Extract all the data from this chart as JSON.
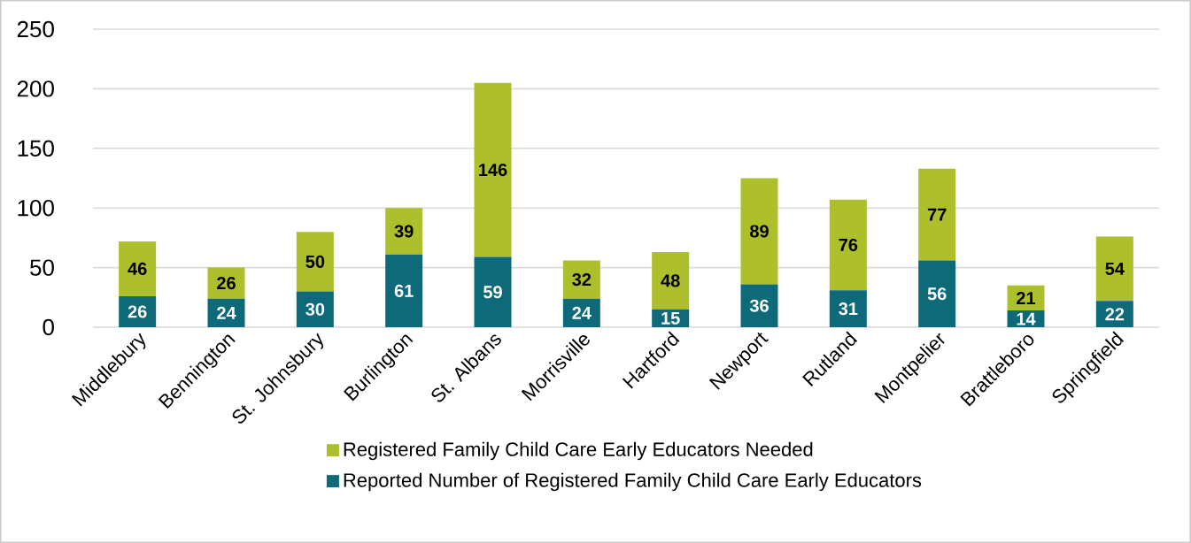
{
  "chart_data": {
    "type": "bar",
    "stacked": true,
    "categories": [
      "Middlebury",
      "Bennington",
      "St. Johnsbury",
      "Burlington",
      "St. Albans",
      "Morrisville",
      "Hartford",
      "Newport",
      "Rutland",
      "Montpelier",
      "Brattleboro",
      "Springfield"
    ],
    "series": [
      {
        "name": "Reported Number of Registered Family Child Care Early Educators",
        "color": "#0e6a78",
        "values": [
          26,
          24,
          30,
          61,
          59,
          24,
          15,
          36,
          31,
          56,
          14,
          22
        ]
      },
      {
        "name": "Registered Family Child Care Early Educators Needed",
        "color": "#adbf2a",
        "values": [
          46,
          26,
          50,
          39,
          146,
          32,
          48,
          89,
          76,
          77,
          21,
          54
        ]
      }
    ],
    "ylim": [
      0,
      250
    ],
    "yticks": [
      0,
      50,
      100,
      150,
      200,
      250
    ],
    "grid": "y",
    "legend": "bottom",
    "data_labels": true
  }
}
